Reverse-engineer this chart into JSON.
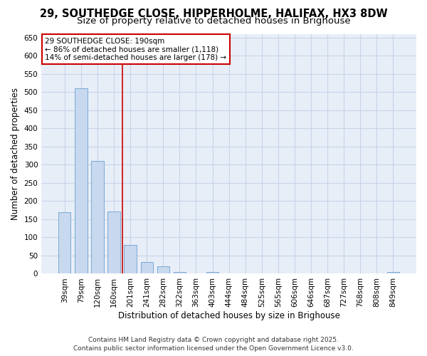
{
  "title_line1": "29, SOUTHEDGE CLOSE, HIPPERHOLME, HALIFAX, HX3 8DW",
  "title_line2": "Size of property relative to detached houses in Brighouse",
  "xlabel": "Distribution of detached houses by size in Brighouse",
  "ylabel": "Number of detached properties",
  "categories": [
    "39sqm",
    "79sqm",
    "120sqm",
    "160sqm",
    "201sqm",
    "241sqm",
    "282sqm",
    "322sqm",
    "363sqm",
    "403sqm",
    "444sqm",
    "484sqm",
    "525sqm",
    "565sqm",
    "606sqm",
    "646sqm",
    "687sqm",
    "727sqm",
    "768sqm",
    "808sqm",
    "849sqm"
  ],
  "values": [
    170,
    510,
    310,
    172,
    80,
    33,
    20,
    5,
    0,
    5,
    0,
    0,
    0,
    0,
    0,
    0,
    0,
    0,
    0,
    0,
    5
  ],
  "bar_color": "#c8d8ee",
  "bar_edge_color": "#7baad4",
  "annotation_text": "29 SOUTHEDGE CLOSE: 190sqm\n← 86% of detached houses are smaller (1,118)\n14% of semi-detached houses are larger (178) →",
  "vline_x_index": 3.5,
  "vline_color": "#cc0000",
  "annotation_box_color": "#cc0000",
  "grid_color": "#c8d4e8",
  "background_color": "#ffffff",
  "plot_bg_color": "#e8eef8",
  "ylim": [
    0,
    660
  ],
  "yticks": [
    0,
    50,
    100,
    150,
    200,
    250,
    300,
    350,
    400,
    450,
    500,
    550,
    600,
    650
  ],
  "footer_line1": "Contains HM Land Registry data © Crown copyright and database right 2025.",
  "footer_line2": "Contains public sector information licensed under the Open Government Licence v3.0.",
  "title_fontsize": 10.5,
  "subtitle_fontsize": 9.5,
  "axis_label_fontsize": 8.5,
  "tick_fontsize": 7.5,
  "annotation_fontsize": 7.5,
  "footer_fontsize": 6.5
}
